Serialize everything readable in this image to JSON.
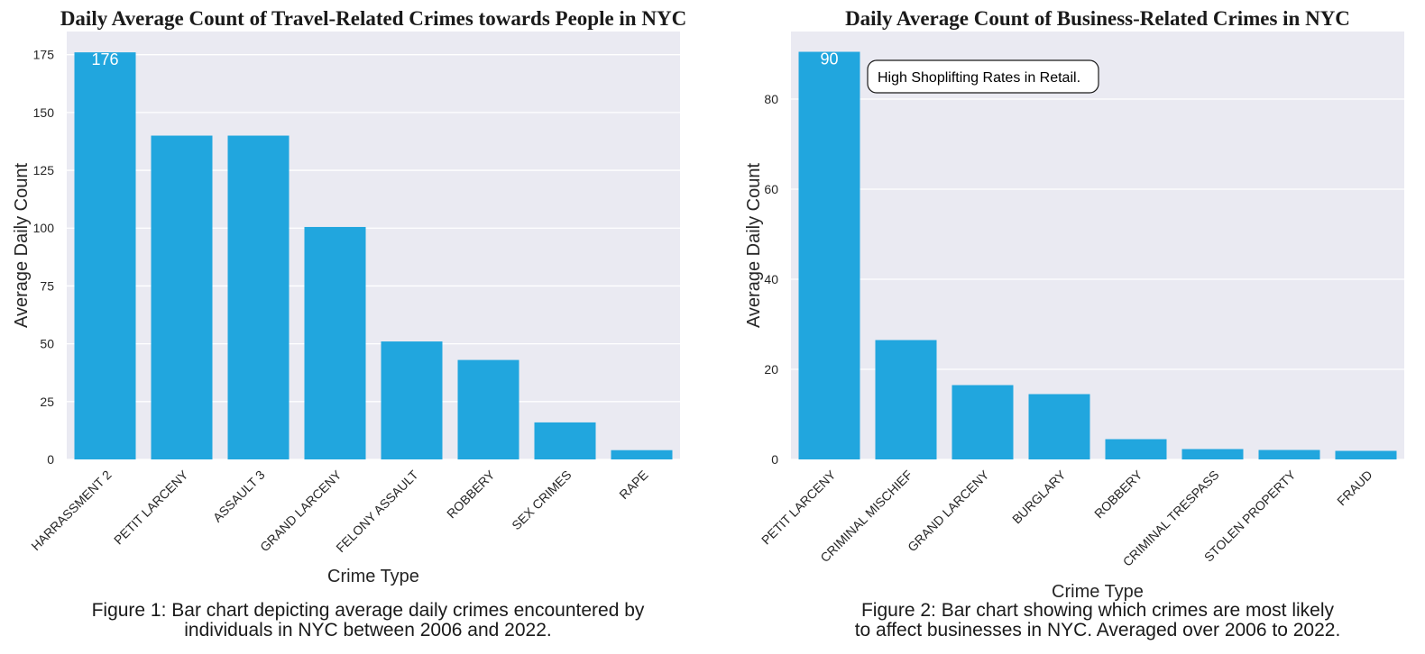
{
  "colors": {
    "bar": "#21a6de",
    "plot_background": "#eaeaf2",
    "grid": "#ffffff"
  },
  "chart_data": [
    {
      "type": "bar",
      "title": "Daily Average Count of Travel-Related Crimes towards People in NYC",
      "xlabel": "Crime Type",
      "ylabel": "Average Daily Count",
      "categories": [
        "HARRASSMENT 2",
        "PETIT LARCENY",
        "ASSAULT 3",
        "GRAND LARCENY",
        "FELONY ASSAULT",
        "ROBBERY",
        "SEX CRIMES",
        "RAPE"
      ],
      "values": [
        176,
        140,
        140,
        100.5,
        51,
        43,
        16,
        4
      ],
      "ylim": [
        0,
        185
      ],
      "yticks": [
        0,
        25,
        50,
        75,
        100,
        125,
        150,
        175
      ],
      "data_labels": [
        {
          "category": "HARRASSMENT 2",
          "text": "176"
        }
      ],
      "grid": true,
      "caption_lines": [
        "Figure 1: Bar chart depicting average daily crimes encountered by",
        "individuals in NYC between 2006 and 2022."
      ]
    },
    {
      "type": "bar",
      "title": "Daily Average Count of Business-Related Crimes in NYC",
      "xlabel": "Crime Type",
      "ylabel": "Average Daily Count",
      "categories": [
        "PETIT LARCENY",
        "CRIMINAL MISCHIEF",
        "GRAND LARCENY",
        "BURGLARY",
        "ROBBERY",
        "CRIMINAL TRESPASS",
        "STOLEN PROPERTY",
        "FRAUD"
      ],
      "values": [
        90.5,
        26.5,
        16.5,
        14.5,
        4.5,
        2.3,
        2.1,
        1.9
      ],
      "ylim": [
        0,
        95
      ],
      "yticks": [
        0,
        20,
        40,
        60,
        80
      ],
      "data_labels": [
        {
          "category": "PETIT LARCENY",
          "text": "90"
        }
      ],
      "annotation": "High Shoplifting Rates in Retail.",
      "grid": true,
      "caption_lines": [
        "Figure 2: Bar chart showing which crimes are most likely",
        "to affect businesses in NYC. Averaged over 2006 to 2022."
      ]
    }
  ]
}
